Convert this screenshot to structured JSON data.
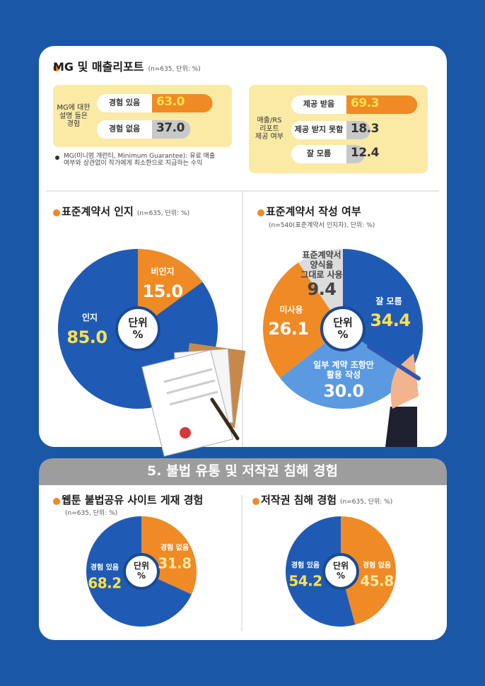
{
  "chart_data": [
    {
      "type": "bar",
      "title": "MG 및 매출리포트",
      "subtitle": "(n=635, 단위: %)",
      "label": "MG에 대한 설명 들은 경험",
      "categories": [
        "경험 있음",
        "경험 없음"
      ],
      "values": [
        63.0,
        37.0
      ],
      "value_labels": [
        "63.0",
        "37.0"
      ],
      "colors": [
        "#f08a24",
        "#c8c8c8"
      ]
    },
    {
      "type": "bar",
      "label": "매출/RS 리포트 제공 여부",
      "categories": [
        "제공 받음",
        "제공 받지 못함",
        "잘 모름"
      ],
      "values": [
        69.3,
        18.3,
        12.4
      ],
      "colors": [
        "#f08a24",
        "#c8c8c8",
        "#c8c8c8"
      ]
    },
    {
      "type": "pie",
      "title": "표준계약서 인지",
      "subtitle": "(n=635, 단위: %)",
      "center_label": "단위 %",
      "categories": [
        "비인지",
        "인지"
      ],
      "values": [
        15.0,
        85.0
      ],
      "value_labels": [
        "15.0",
        "85.0"
      ],
      "colors": [
        "#f08a24",
        "#1f5bb5"
      ]
    },
    {
      "type": "pie",
      "title": "표준계약서 작성 여부",
      "subtitle": "(n=540(표준계약서 인지자), 단위: %)",
      "center_label": "단위 %",
      "categories": [
        "잘 모름",
        "일부 계약 조항만 활용 작성",
        "미사용",
        "표준계약서 양식을 그대로 사용"
      ],
      "values": [
        34.4,
        30.0,
        26.1,
        9.4
      ],
      "value_labels": [
        "34.4",
        "30.0",
        "26.1",
        "9.4"
      ],
      "colors": [
        "#1f5bb5",
        "#5b9ae0",
        "#f08a24",
        "#dcdcdc"
      ]
    },
    {
      "type": "pie",
      "title": "웹툰 불법공유 사이트 게재 경험",
      "subtitle": "(n=635, 단위: %)",
      "center_label": "단위 %",
      "categories": [
        "경험 없음",
        "경험 있음"
      ],
      "values": [
        31.8,
        68.2
      ],
      "colors": [
        "#f08a24",
        "#1f5bb5"
      ]
    },
    {
      "type": "pie",
      "title": "저작권 침해 경험",
      "subtitle": "(n=635, 단위: %)",
      "center_label": "단위 %",
      "categories": [
        "경험 없음",
        "경험 있음"
      ],
      "values": [
        45.8,
        54.2
      ],
      "colors": [
        "#f08a24",
        "#1f5bb5"
      ]
    }
  ],
  "note": "MG(미니멈 개런티, Minimum Guarantee): 유료 매출 여부와 상관없이 작가에게 최소한으로 지급하는 수익",
  "section_title": "5. 불법 유통 및 저작권 침해 경험"
}
